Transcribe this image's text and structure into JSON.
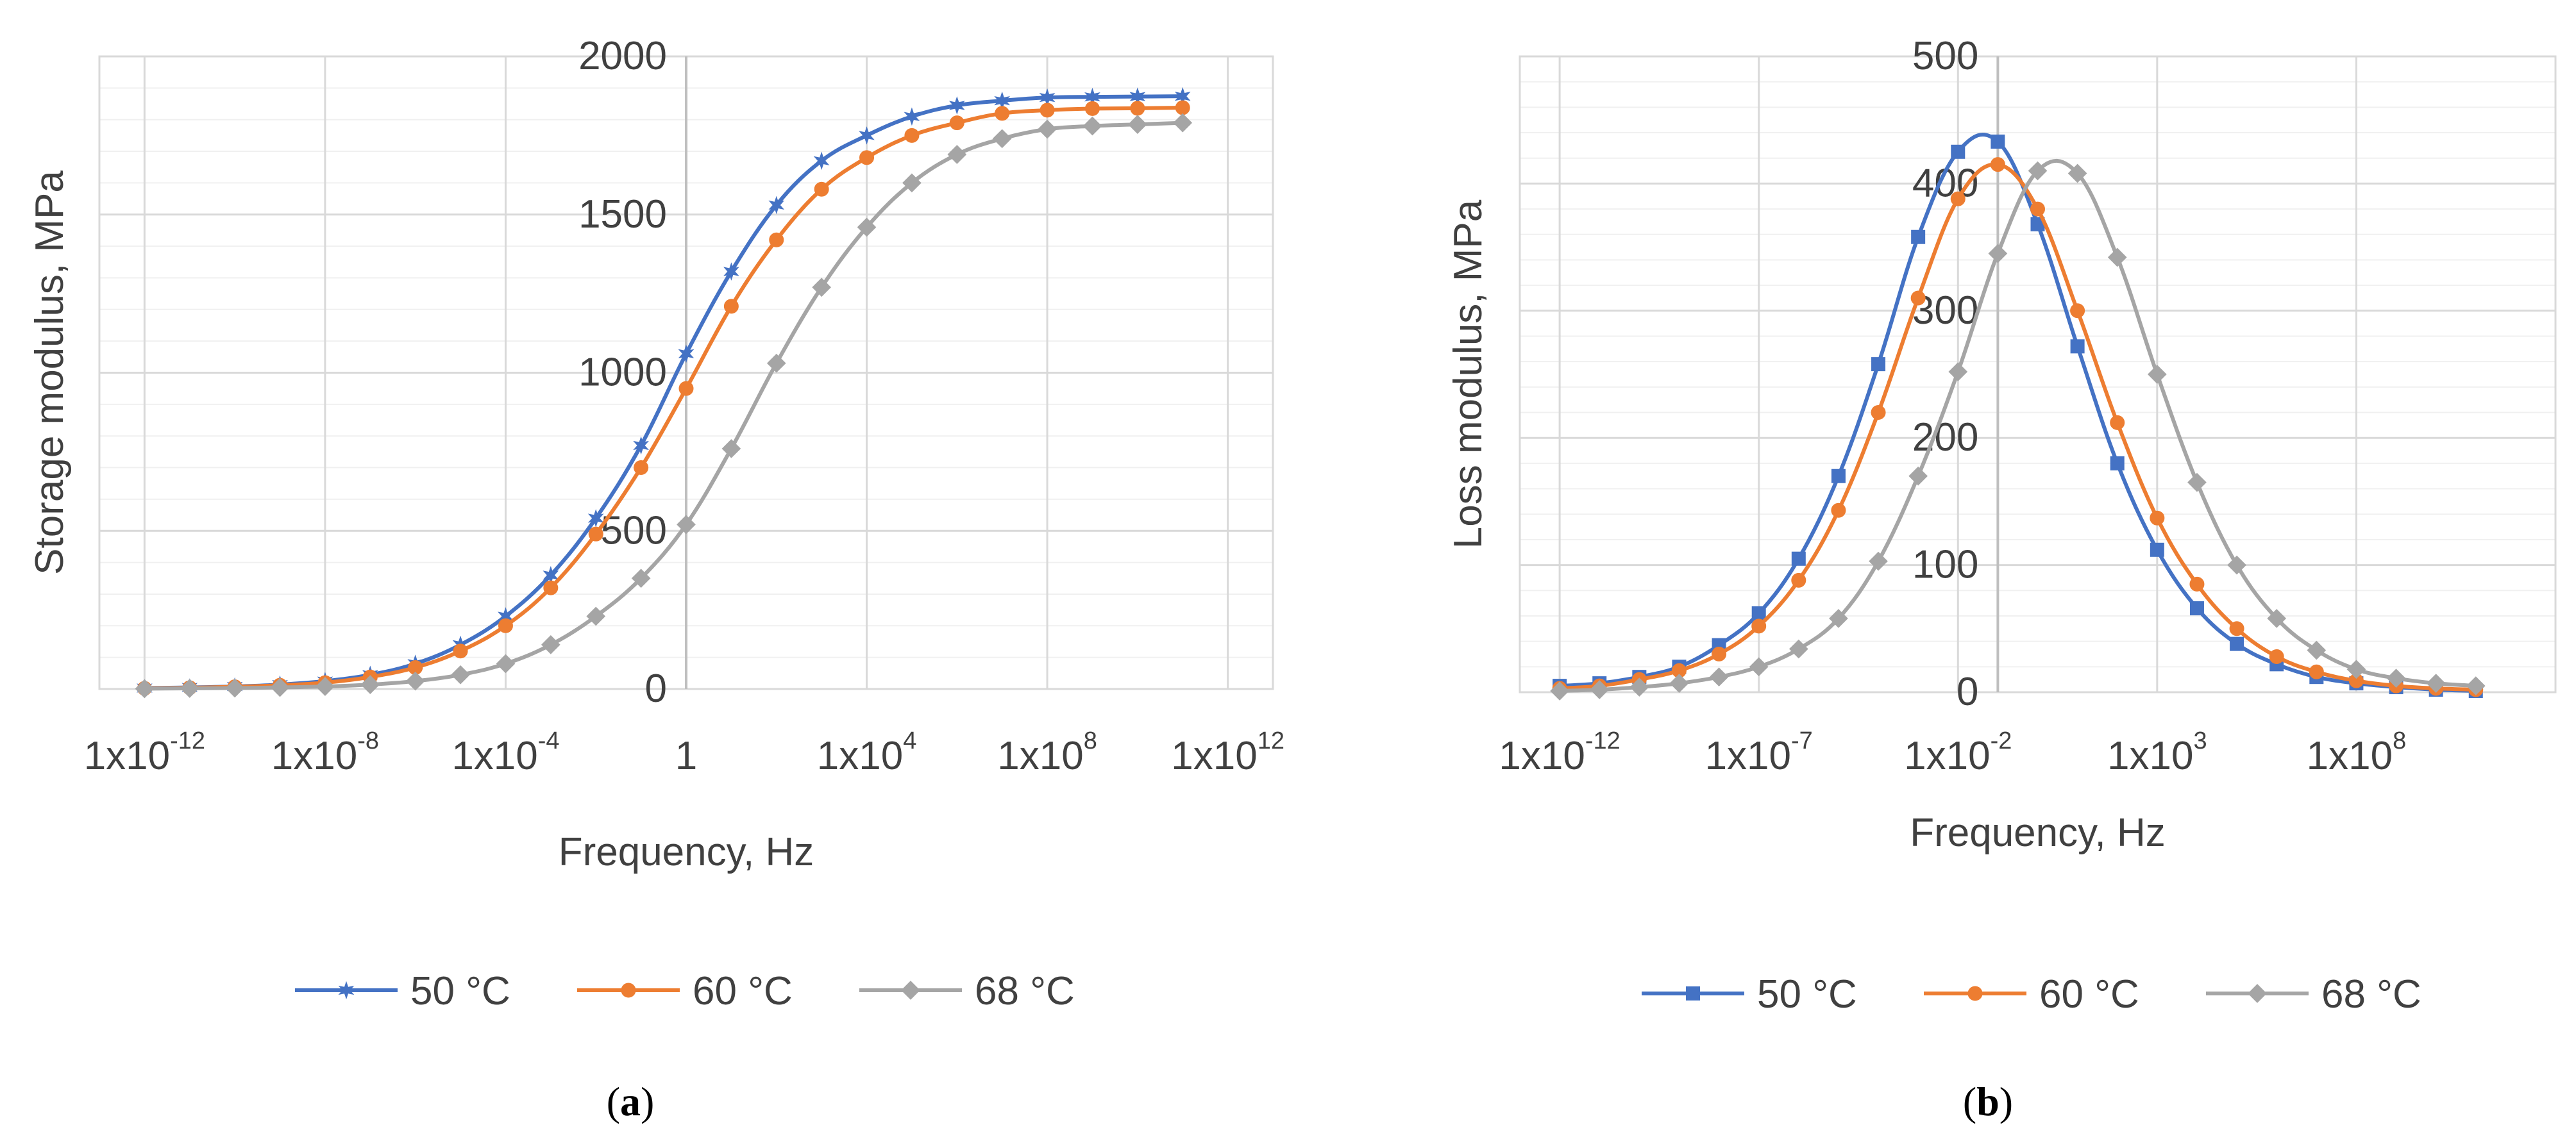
{
  "colors": {
    "series1": "#4472C4",
    "series2": "#ED7D31",
    "series3": "#A5A5A5",
    "grid_major": "#D9D9D9",
    "grid_minor": "#F0F0F0",
    "frame": "#D9D9D9",
    "axis_line": "#BFBFBF",
    "text": "#404040"
  },
  "chart_data": [
    {
      "panel": "a",
      "type": "line",
      "x_scale": "log10",
      "title": "",
      "xlabel": "Frequency, Hz",
      "ylabel": "Storage modulus, MPa",
      "xlim_log10": [
        -13,
        13
      ],
      "ylim": [
        0,
        2000
      ],
      "y_axis_crosses_at_log10": 0,
      "yticks": [
        {
          "label": "0",
          "value": 0
        },
        {
          "label": "500",
          "value": 500
        },
        {
          "label": "1000",
          "value": 1000
        },
        {
          "label": "1500",
          "value": 1500
        },
        {
          "label": "2000",
          "value": 2000
        }
      ],
      "xticks": [
        {
          "base": "1x10",
          "exp": "-12",
          "log10": -12
        },
        {
          "base": "1x10",
          "exp": "-8",
          "log10": -8
        },
        {
          "base": "1x10",
          "exp": "-4",
          "log10": -4
        },
        {
          "base": "1",
          "exp": "",
          "log10": 0
        },
        {
          "base": "1x10",
          "exp": "4",
          "log10": 4
        },
        {
          "base": "1x10",
          "exp": "8",
          "log10": 8
        },
        {
          "base": "1x10",
          "exp": "12",
          "log10": 12
        }
      ],
      "legend_position": "bottom",
      "series": [
        {
          "name": "50 °C",
          "marker": "star",
          "color_key": "series1",
          "x_log10": [
            -12,
            -11,
            -10,
            -9,
            -8,
            -7,
            -6,
            -5,
            -4,
            -3,
            -2,
            -1,
            0,
            1,
            2,
            3,
            4,
            5,
            6,
            7,
            8,
            9,
            10,
            11
          ],
          "values": [
            3,
            5,
            8,
            14,
            25,
            45,
            80,
            140,
            230,
            360,
            540,
            770,
            1060,
            1320,
            1530,
            1670,
            1750,
            1810,
            1845,
            1860,
            1870,
            1872,
            1873,
            1874
          ]
        },
        {
          "name": "60 °C",
          "marker": "circle",
          "color_key": "series2",
          "x_log10": [
            -12,
            -11,
            -10,
            -9,
            -8,
            -7,
            -6,
            -5,
            -4,
            -3,
            -2,
            -1,
            0,
            1,
            2,
            3,
            4,
            5,
            6,
            7,
            8,
            9,
            10,
            11
          ],
          "values": [
            2,
            4,
            7,
            12,
            20,
            38,
            68,
            120,
            200,
            320,
            490,
            700,
            950,
            1210,
            1420,
            1580,
            1680,
            1750,
            1790,
            1820,
            1830,
            1835,
            1836,
            1838
          ]
        },
        {
          "name": "68 °C",
          "marker": "diamond",
          "color_key": "series3",
          "x_log10": [
            -12,
            -11,
            -10,
            -9,
            -8,
            -7,
            -6,
            -5,
            -4,
            -3,
            -2,
            -1,
            0,
            1,
            2,
            3,
            4,
            5,
            6,
            7,
            8,
            9,
            10,
            11
          ],
          "values": [
            1,
            2,
            3,
            5,
            8,
            14,
            25,
            45,
            80,
            140,
            230,
            350,
            520,
            760,
            1030,
            1270,
            1460,
            1600,
            1690,
            1740,
            1770,
            1780,
            1785,
            1790
          ]
        }
      ],
      "label": {
        "prefix": "(",
        "letter": "a",
        "suffix": ")"
      }
    },
    {
      "panel": "b",
      "type": "line",
      "x_scale": "log10",
      "title": "",
      "xlabel": "Frequency, Hz",
      "ylabel": "Loss modulus, MPa",
      "xlim_log10": [
        -13,
        13
      ],
      "ylim": [
        0,
        500
      ],
      "y_axis_crosses_at_log10": -1,
      "yticks": [
        {
          "label": "0",
          "value": 0
        },
        {
          "label": "100",
          "value": 100
        },
        {
          "label": "200",
          "value": 200
        },
        {
          "label": "300",
          "value": 300
        },
        {
          "label": "400",
          "value": 400
        },
        {
          "label": "500",
          "value": 500
        }
      ],
      "xticks": [
        {
          "base": "1x10",
          "exp": "-12",
          "log10": -12
        },
        {
          "base": "1x10",
          "exp": "-7",
          "log10": -7
        },
        {
          "base": "1x10",
          "exp": "-2",
          "log10": -2
        },
        {
          "base": "1x10",
          "exp": "3",
          "log10": 3
        },
        {
          "base": "1x10",
          "exp": "8",
          "log10": 8
        }
      ],
      "legend_position": "bottom",
      "series": [
        {
          "name": "50 °C",
          "marker": "square",
          "color_key": "series1",
          "x_log10": [
            -12,
            -11,
            -10,
            -9,
            -8,
            -7,
            -6,
            -5,
            -4,
            -3,
            -2,
            -1,
            0,
            1,
            2,
            3,
            4,
            5,
            6,
            7,
            8,
            9,
            10,
            11
          ],
          "values": [
            5,
            7,
            12,
            20,
            37,
            62,
            105,
            170,
            258,
            358,
            425,
            433,
            368,
            272,
            180,
            112,
            66,
            38,
            22,
            12,
            7,
            4,
            2,
            1
          ]
        },
        {
          "name": "60 °C",
          "marker": "circle",
          "color_key": "series2",
          "x_log10": [
            -12,
            -11,
            -10,
            -9,
            -8,
            -7,
            -6,
            -5,
            -4,
            -3,
            -2,
            -1,
            0,
            1,
            2,
            3,
            4,
            5,
            6,
            7,
            8,
            9,
            10,
            11
          ],
          "values": [
            3,
            5,
            10,
            17,
            30,
            52,
            88,
            143,
            220,
            310,
            388,
            415,
            380,
            300,
            212,
            137,
            85,
            50,
            28,
            16,
            9,
            5,
            3,
            2
          ]
        },
        {
          "name": "68 °C",
          "marker": "diamond",
          "color_key": "series3",
          "x_log10": [
            -12,
            -11,
            -10,
            -9,
            -8,
            -7,
            -6,
            -5,
            -4,
            -3,
            -2,
            -1,
            0,
            1,
            2,
            3,
            4,
            5,
            6,
            7,
            8,
            9,
            10,
            11
          ],
          "values": [
            1,
            2,
            4,
            7,
            12,
            20,
            34,
            58,
            103,
            170,
            252,
            345,
            410,
            408,
            342,
            250,
            165,
            100,
            58,
            33,
            18,
            11,
            7,
            5
          ]
        }
      ],
      "label": {
        "prefix": "(",
        "letter": "b",
        "suffix": ")"
      }
    }
  ]
}
